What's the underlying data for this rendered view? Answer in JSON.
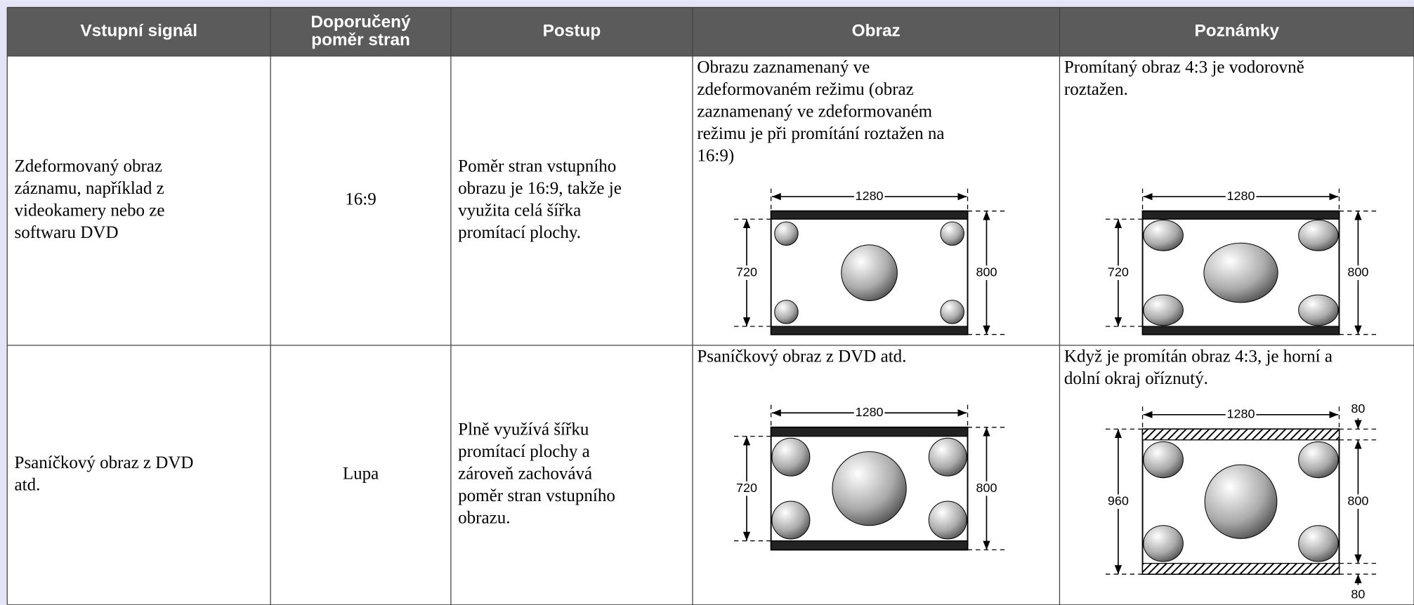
{
  "header": {
    "columns": [
      [
        "Vstupní signál"
      ],
      [
        "Doporučený",
        "poměr stran"
      ],
      [
        "Postup"
      ],
      [
        "Obraz"
      ],
      [
        "Poznámky"
      ]
    ]
  },
  "rows": [
    {
      "cells": [
        [
          "Zdeformovaný obraz",
          "záznamu, například z",
          "videokamery nebo ze",
          "softwaru DVD"
        ],
        [
          "16:9"
        ],
        [
          "Poměr stran vstupního",
          "obrazu je 16:9, takže je",
          "využita celá šířka",
          "promítací plochy."
        ],
        [
          "Obrazu zaznamenaný ve",
          "zdeformovaném režimu (obraz",
          "zaznamenaný ve zdeformovaném",
          "režimu je při promítání roztažen na",
          "16:9)"
        ],
        [
          "Promítaný obraz 4:3 je vodorovně",
          "roztažen."
        ]
      ],
      "diagrams": {
        "image": {
          "width": 1280,
          "left": 720,
          "right": 800
        },
        "notes": {
          "width": 1280,
          "left": 720,
          "right": 800
        }
      }
    },
    {
      "cells": [
        [
          "Psaníčkový obraz z DVD",
          "atd."
        ],
        [
          "Lupa"
        ],
        [
          "Plně využívá šířku",
          "promítací plochy a",
          "zároveň zachovává",
          "poměr stran vstupního",
          "obrazu."
        ],
        [
          "Psaníčkový obraz z DVD atd."
        ],
        [
          "Když je promítán obraz 4:3, je horní a",
          "dolní okraj oříznutý."
        ]
      ],
      "diagrams": {
        "image": {
          "width": 1280,
          "left": 720,
          "right": 800
        },
        "notes": {
          "width": 1280,
          "left": 960,
          "right": 800,
          "top": 80,
          "bottom": 80
        }
      }
    }
  ]
}
